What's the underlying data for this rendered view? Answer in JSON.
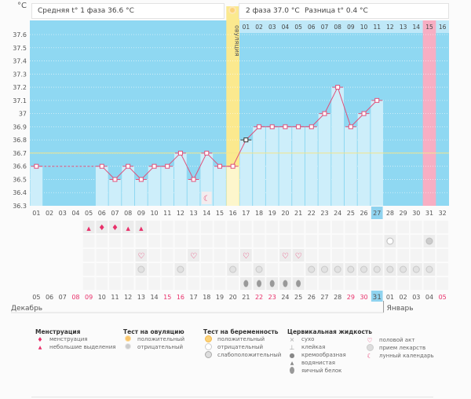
{
  "chart_data": {
    "type": "bar",
    "title": "",
    "ylabel": "°C",
    "ylim": [
      36.3,
      37.6
    ],
    "yticks": [
      "37.6",
      "37.5",
      "37.4",
      "37.3",
      "37.2",
      "37.1",
      "37",
      "36.9",
      "36.8",
      "36.7",
      "36.6",
      "36.5",
      "36.4",
      "36.3"
    ],
    "coverline": 36.7,
    "categories": [
      "01",
      "02",
      "03",
      "04",
      "05",
      "06",
      "07",
      "08",
      "09",
      "10",
      "11",
      "12",
      "13",
      "14",
      "15",
      "16",
      "17",
      "18",
      "19",
      "20",
      "21",
      "22",
      "23",
      "24",
      "25",
      "26",
      "27",
      "28",
      "29",
      "30",
      "31",
      "32"
    ],
    "temperatures": [
      36.6,
      null,
      null,
      null,
      null,
      36.6,
      36.5,
      36.6,
      36.5,
      36.6,
      36.6,
      36.7,
      36.5,
      36.7,
      36.6,
      36.6,
      36.8,
      36.9,
      36.9,
      36.9,
      36.9,
      36.9,
      37.0,
      37.2,
      36.9,
      37.0,
      37.1,
      null,
      null,
      null,
      null,
      null
    ],
    "highlighted_marker_day": 17,
    "ovulation_day": 16,
    "ovulation_label": "овуляция",
    "period_expected_day": 31,
    "today_day": 27,
    "phase2_day_numbers": [
      "01",
      "02",
      "03",
      "04",
      "05",
      "06",
      "07",
      "08",
      "09",
      "10",
      "11",
      "12",
      "13",
      "14",
      "15",
      "16"
    ],
    "phase2_highlight": "15",
    "moon_day": 14
  },
  "header": {
    "phase1": "Средняя t° 1 фаза 36.6 °C",
    "phase2": "2 фаза 37.0 °C",
    "diff": "Разница t° 0.4 °C"
  },
  "rows": {
    "menstruation": {
      "5": "small",
      "6": "heavy",
      "7": "heavy",
      "8": "small",
      "9": "small"
    },
    "ovulation_test": {},
    "pregnancy_test": {
      "28": "negative",
      "31": "weak"
    },
    "intercourse": [
      9,
      13,
      17,
      20,
      21
    ],
    "medication": [
      9,
      12,
      16,
      18,
      22,
      23,
      24,
      25,
      26,
      27,
      28,
      29,
      30,
      31
    ],
    "fluid": {
      "17": "egg-white",
      "18": "egg-white",
      "19": "egg-white",
      "20": "egg-white",
      "21": "egg-white"
    }
  },
  "dates": [
    {
      "d": "05",
      "red": false
    },
    {
      "d": "06",
      "red": false
    },
    {
      "d": "07",
      "red": false
    },
    {
      "d": "08",
      "red": true
    },
    {
      "d": "09",
      "red": true
    },
    {
      "d": "10",
      "red": false
    },
    {
      "d": "11",
      "red": false
    },
    {
      "d": "12",
      "red": false
    },
    {
      "d": "13",
      "red": false
    },
    {
      "d": "14",
      "red": false
    },
    {
      "d": "15",
      "red": true
    },
    {
      "d": "16",
      "red": true
    },
    {
      "d": "17",
      "red": false
    },
    {
      "d": "18",
      "red": false
    },
    {
      "d": "19",
      "red": false
    },
    {
      "d": "20",
      "red": false
    },
    {
      "d": "21",
      "red": false
    },
    {
      "d": "22",
      "red": true
    },
    {
      "d": "23",
      "red": true
    },
    {
      "d": "24",
      "red": false
    },
    {
      "d": "25",
      "red": false
    },
    {
      "d": "26",
      "red": false
    },
    {
      "d": "27",
      "red": false
    },
    {
      "d": "28",
      "red": false
    },
    {
      "d": "29",
      "red": true
    },
    {
      "d": "30",
      "red": true
    },
    {
      "d": "31",
      "red": false,
      "today": true
    },
    {
      "d": "01",
      "red": false
    },
    {
      "d": "02",
      "red": false
    },
    {
      "d": "03",
      "red": false
    },
    {
      "d": "04",
      "red": false
    },
    {
      "d": "05",
      "red": true
    }
  ],
  "months": {
    "left": "Декабрь",
    "right": "Январь"
  },
  "legend": {
    "menstruation": {
      "title": "Менструация",
      "items": [
        "менструация",
        "небольшие выделения"
      ]
    },
    "ovulation": {
      "title": "Тест на овуляцию",
      "items": [
        "положительный",
        "отрицательный"
      ]
    },
    "pregnancy": {
      "title": "Тест на беременность",
      "items": [
        "положительный",
        "отрицательный",
        "слабоположительный"
      ]
    },
    "fluid": {
      "title": "Цервикальная жидкость",
      "items": [
        "сухо",
        "клейкая",
        "кремообразная",
        "водянистая",
        "яичный белок"
      ]
    },
    "other": {
      "items": [
        "половой акт",
        "прием лекарств",
        "лунный календарь"
      ]
    }
  },
  "colors": {
    "sky": "#8fd8f2",
    "bar": "#cdeefa",
    "ovulation": "#fbe98e",
    "ovulation_bar": "#fdf6cc",
    "period": "#f7aec3",
    "line": "#e0507a",
    "today": "#8fd3ef",
    "red_date": "#e8306a"
  }
}
